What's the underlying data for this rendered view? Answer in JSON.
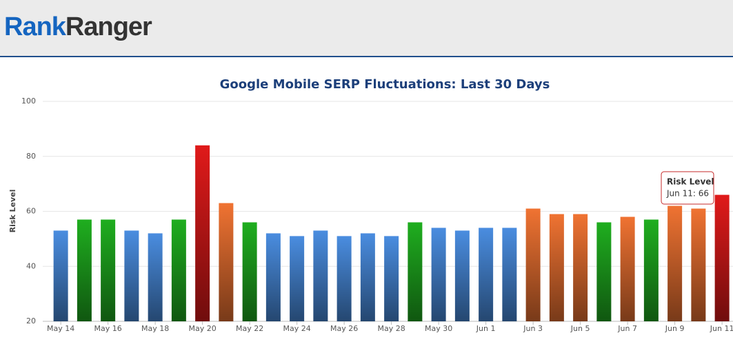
{
  "header": {
    "logo_part1": "Rank",
    "logo_part2": "Ranger"
  },
  "chart_data": {
    "type": "bar",
    "title": "Google Mobile SERP Fluctuations: Last 30 Days",
    "y_label": "Risk Level",
    "categories": [
      "May 14",
      null,
      "May 16",
      null,
      "May 18",
      null,
      "May 20",
      null,
      "May 22",
      null,
      "May 24",
      null,
      "May 26",
      null,
      "May 28",
      null,
      "May 30",
      null,
      "Jun 1",
      null,
      "Jun 3",
      null,
      "Jun 5",
      null,
      "Jun 7",
      null,
      "Jun 9",
      null,
      "Jun 11"
    ],
    "series": [
      {
        "name": "Risk Level",
        "values": [
          53,
          57,
          57,
          53,
          52,
          57,
          84,
          63,
          56,
          52,
          51,
          53,
          51,
          52,
          51,
          56,
          54,
          53,
          54,
          54,
          61,
          59,
          59,
          56,
          58,
          57,
          62,
          61,
          66
        ],
        "colors": [
          "#4a8de0",
          "#1fae1f",
          "#1fae1f",
          "#4a8de0",
          "#4a8de0",
          "#1fae1f",
          "#e01a1a",
          "#f07332",
          "#1fae1f",
          "#4a8de0",
          "#4a8de0",
          "#4a8de0",
          "#4a8de0",
          "#4a8de0",
          "#4a8de0",
          "#1fae1f",
          "#4a8de0",
          "#4a8de0",
          "#4a8de0",
          "#4a8de0",
          "#f07332",
          "#f07332",
          "#f07332",
          "#1fae1f",
          "#f07332",
          "#1fae1f",
          "#f07332",
          "#f07332",
          "#e01a1a"
        ]
      }
    ],
    "ylim": [
      20,
      100
    ],
    "yticks": [
      20,
      40,
      60,
      80,
      100
    ],
    "grid": true,
    "tooltip": {
      "title": "Risk Level",
      "text": "Jun 11: 66"
    }
  }
}
